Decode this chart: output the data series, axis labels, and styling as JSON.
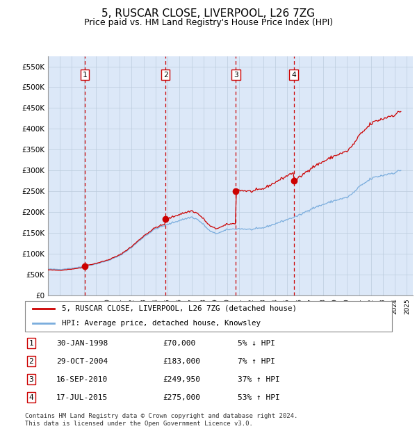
{
  "title": "5, RUSCAR CLOSE, LIVERPOOL, L26 7ZG",
  "subtitle": "Price paid vs. HM Land Registry's House Price Index (HPI)",
  "title_fontsize": 11,
  "subtitle_fontsize": 9,
  "bg_color": "#dce8f8",
  "ylim": [
    0,
    575000
  ],
  "yticks": [
    0,
    50000,
    100000,
    150000,
    200000,
    250000,
    300000,
    350000,
    400000,
    450000,
    500000,
    550000
  ],
  "ytick_labels": [
    "£0",
    "£50K",
    "£100K",
    "£150K",
    "£200K",
    "£250K",
    "£300K",
    "£350K",
    "£400K",
    "£450K",
    "£500K",
    "£550K"
  ],
  "xlim_start": 1995.0,
  "xlim_end": 2025.5,
  "sale_dates": [
    1998.08,
    2004.83,
    2010.71,
    2015.54
  ],
  "sale_prices": [
    70000,
    183000,
    249950,
    275000
  ],
  "sale_labels": [
    "1",
    "2",
    "3",
    "4"
  ],
  "red_line_color": "#cc0000",
  "blue_line_color": "#7aaddd",
  "vline_color": "#cc0000",
  "legend_label_red": "5, RUSCAR CLOSE, LIVERPOOL, L26 7ZG (detached house)",
  "legend_label_blue": "HPI: Average price, detached house, Knowsley",
  "table_rows": [
    [
      "1",
      "30-JAN-1998",
      "£70,000",
      "5% ↓ HPI"
    ],
    [
      "2",
      "29-OCT-2004",
      "£183,000",
      "7% ↑ HPI"
    ],
    [
      "3",
      "16-SEP-2010",
      "£249,950",
      "37% ↑ HPI"
    ],
    [
      "4",
      "17-JUL-2015",
      "£275,000",
      "53% ↑ HPI"
    ]
  ],
  "footer": "Contains HM Land Registry data © Crown copyright and database right 2024.\nThis data is licensed under the Open Government Licence v3.0."
}
